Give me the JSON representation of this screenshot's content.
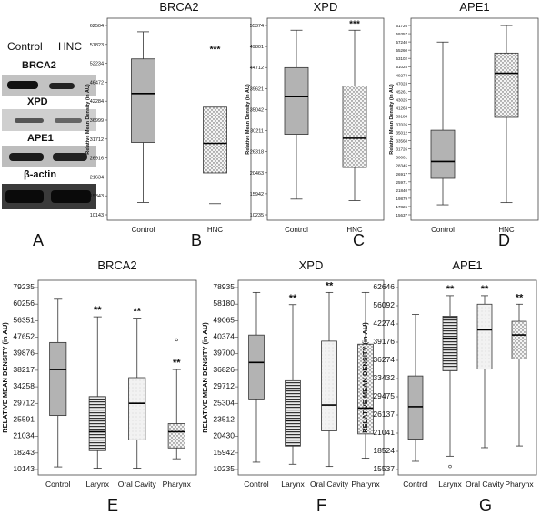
{
  "western_blot": {
    "columns": [
      "Control",
      "HNC"
    ],
    "proteins": [
      "BRCA2",
      "XPD",
      "APE1",
      "β-actin"
    ]
  },
  "panel_letters": [
    "A",
    "B",
    "C",
    "D",
    "E",
    "F",
    "G"
  ],
  "chart_data": [
    {
      "type": "box",
      "panel": "B",
      "title": "BRCA2",
      "ylabel": "Relative Mean Density (in AU)",
      "yticks": [
        "10143",
        "15343",
        "21634",
        "26916",
        "31712",
        "36999",
        "42284",
        "46472",
        "52234",
        "57823",
        "62504"
      ],
      "categories": [
        "Control",
        "HNC"
      ],
      "boxes": [
        {
          "min": 10900,
          "q1": 30800,
          "median": 47000,
          "q3": 58500,
          "max": 67500,
          "fill": "solid"
        },
        {
          "min": 10500,
          "q1": 20700,
          "median": 30500,
          "q3": 42500,
          "max": 59500,
          "fill": "dots",
          "annotation": "***"
        }
      ]
    },
    {
      "type": "box",
      "panel": "C",
      "title": "XPD",
      "ylabel": "Relative Mean Density (in AU)",
      "yticks": [
        "10235",
        "15942",
        "20463",
        "26318",
        "30211",
        "35042",
        "39621",
        "44712",
        "49801",
        "55374"
      ],
      "categories": [
        "Control",
        "HNC"
      ],
      "boxes": [
        {
          "min": 12000,
          "q1": 33500,
          "median": 46000,
          "q3": 55600,
          "max": 68000,
          "fill": "solid"
        },
        {
          "min": 11500,
          "q1": 22500,
          "median": 32200,
          "q3": 49500,
          "max": 68000,
          "fill": "dots",
          "annotation": "***"
        }
      ]
    },
    {
      "type": "box",
      "panel": "D",
      "title": "APE1",
      "ylabel": "Relative Mean Density (in AU)",
      "yticks": [
        "15637",
        "17826",
        "19879",
        "21840",
        "25971",
        "26917",
        "28345",
        "30001",
        "31726",
        "33568",
        "35012",
        "37026",
        "39184",
        "41263",
        "43025",
        "45261",
        "47023",
        "49274",
        "51025",
        "53102",
        "55260",
        "57240",
        "59357",
        "61726"
      ],
      "categories": [
        "Control",
        "HNC"
      ],
      "boxes": [
        {
          "min": 16200,
          "q1": 23400,
          "median": 28000,
          "q3": 36500,
          "max": 60500,
          "fill": "solid"
        },
        {
          "min": 16800,
          "q1": 40000,
          "median": 52000,
          "q3": 57500,
          "max": 65000,
          "fill": "dots"
        }
      ]
    },
    {
      "type": "box",
      "panel": "E",
      "title": "BRCA2",
      "ylabel": "RELATIVE MEAN DENSITY (in AU)",
      "yticks": [
        "10143",
        "18243",
        "21034",
        "25591",
        "29712",
        "34258",
        "38217",
        "39876",
        "47652",
        "56351",
        "60256",
        "79235"
      ],
      "categories": [
        "Control",
        "Larynx",
        "Oral Cavity",
        "Pharynx"
      ],
      "boxes": [
        {
          "min": 11000,
          "q1": 30000,
          "median": 47000,
          "q3": 57000,
          "max": 73000,
          "fill": "solid",
          "annotation": ""
        },
        {
          "min": 10500,
          "q1": 17000,
          "median": 24000,
          "q3": 37000,
          "max": 66500,
          "fill": "hlines",
          "annotation": "**"
        },
        {
          "min": 10500,
          "q1": 21000,
          "median": 34500,
          "q3": 44000,
          "max": 66000,
          "fill": "light",
          "annotation": "**"
        },
        {
          "min": 14000,
          "q1": 18000,
          "median": 24000,
          "q3": 27000,
          "max": 47000,
          "fill": "dots",
          "annotation": "**",
          "outliers": [
            58000
          ]
        }
      ]
    },
    {
      "type": "box",
      "panel": "F",
      "title": "XPD",
      "ylabel": "RELATIVE MEAN DENSITY (in AU)",
      "yticks": [
        "10235",
        "15942",
        "20430",
        "23512",
        "25304",
        "29712",
        "36826",
        "39700",
        "40374",
        "49065",
        "58180",
        "78935"
      ],
      "categories": [
        "Control",
        "Larynx",
        "Oral Cavity",
        "Pharynx"
      ],
      "boxes": [
        {
          "min": 12200,
          "q1": 33000,
          "median": 45000,
          "q3": 54000,
          "max": 68000,
          "fill": "solid",
          "annotation": ""
        },
        {
          "min": 11500,
          "q1": 17500,
          "median": 26000,
          "q3": 39000,
          "max": 64000,
          "fill": "hlines",
          "annotation": "**"
        },
        {
          "min": 10800,
          "q1": 22500,
          "median": 31000,
          "q3": 52000,
          "max": 68000,
          "fill": "light",
          "annotation": "**"
        },
        {
          "min": 13500,
          "q1": 21500,
          "median": 30000,
          "q3": 51000,
          "max": 68000,
          "fill": "dots",
          "annotation": ""
        }
      ]
    },
    {
      "type": "box",
      "panel": "G",
      "title": "APE1",
      "ylabel": "RELATIVE MEAN DENSITY (in AU)",
      "yticks": [
        "15537",
        "18524",
        "21041",
        "26137",
        "29475",
        "33432",
        "36274",
        "39176",
        "42274",
        "56092",
        "62646"
      ],
      "categories": [
        "Control",
        "Larynx",
        "Oral Cavity",
        "Pharynx"
      ],
      "boxes": [
        {
          "min": 17000,
          "q1": 23500,
          "median": 33000,
          "q3": 42000,
          "max": 60000,
          "fill": "solid",
          "annotation": ""
        },
        {
          "min": 18500,
          "q1": 43500,
          "median": 53000,
          "q3": 59500,
          "max": 65500,
          "fill": "hlines",
          "annotation": "**",
          "outliers": [
            15500
          ]
        },
        {
          "min": 21000,
          "q1": 44000,
          "median": 55500,
          "q3": 63000,
          "max": 65500,
          "fill": "light",
          "annotation": "**"
        },
        {
          "min": 21500,
          "q1": 47000,
          "median": 54000,
          "q3": 58000,
          "max": 63000,
          "fill": "dots",
          "annotation": "**"
        }
      ]
    }
  ]
}
